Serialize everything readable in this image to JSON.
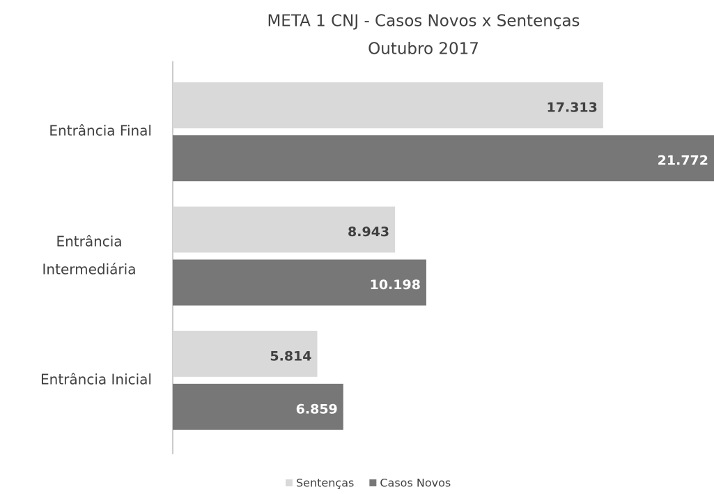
{
  "chart_data": {
    "type": "hbar",
    "title": "META 1 CNJ - Casos Novos x Sentenças",
    "subtitle": "Outubro 2017",
    "categories": [
      "Entrância Final",
      "Entrância Intermediária",
      "Entrância Inicial"
    ],
    "series": [
      {
        "name": "Sentenças",
        "color": "#d9d9d9",
        "values": [
          17313,
          8943,
          5814
        ],
        "value_labels": [
          "17.313",
          "8.943",
          "5.814"
        ]
      },
      {
        "name": "Casos Novos",
        "color": "#777777",
        "values": [
          21772,
          10198,
          6859
        ],
        "value_labels": [
          "21.772",
          "10.198",
          "6.859"
        ]
      }
    ],
    "legend": "bottom"
  }
}
